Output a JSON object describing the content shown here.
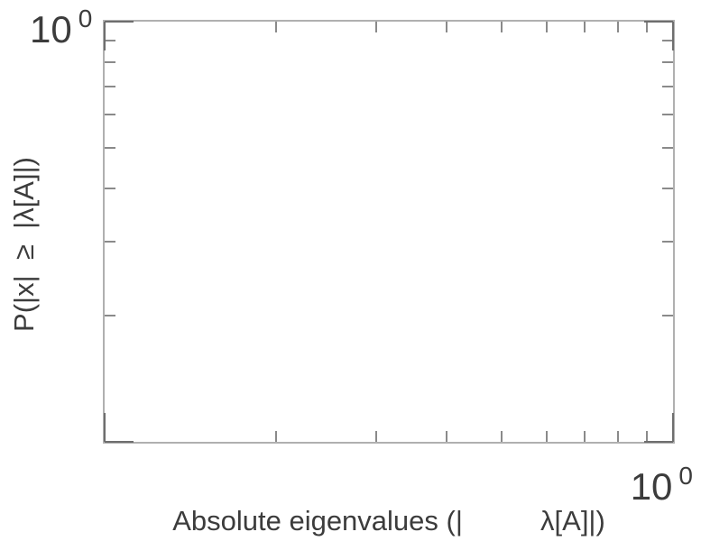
{
  "figure": {
    "background": "#ffffff",
    "frame_color": "#b0b0b0",
    "minor_tick_color": "#8a8a8a",
    "major_tick_color": "#6e6e6e",
    "text_color": "#3c3c3c",
    "y_axis_top_tick_label": {
      "mantissa": "10",
      "exponent": "0"
    },
    "x_axis_right_tick_label": {
      "mantissa": "10",
      "exponent": "0"
    },
    "xlabel_display": "Absolute eigenvalues (|          λ[A]|)",
    "ylabel_display": "P(|x|  ≥  |λ[A]|)"
  },
  "chart_data": {
    "type": "scatter",
    "title": "",
    "series": [],
    "xlabel": "Absolute eigenvalues (|λ[A]|)",
    "ylabel": "P(|x| ≥ |λ[A]|)",
    "xscale": "log",
    "yscale": "log",
    "xlim": [
      0.1,
      1.0
    ],
    "ylim": [
      0.1,
      1.0
    ],
    "grid": false,
    "legend": null,
    "x_major_ticks": [
      0.1,
      1.0
    ],
    "y_major_ticks": [
      0.1,
      1.0
    ],
    "x_tick_labels": [
      {
        "value": 1.0,
        "label": "10^0"
      }
    ],
    "y_tick_labels": [
      {
        "value": 1.0,
        "label": "10^0"
      }
    ],
    "x_minor_ticks": [
      0.2,
      0.3,
      0.4,
      0.5,
      0.6,
      0.7,
      0.8,
      0.9
    ],
    "y_minor_ticks": [
      0.2,
      0.3,
      0.4,
      0.5,
      0.6,
      0.7,
      0.8,
      0.9
    ]
  }
}
